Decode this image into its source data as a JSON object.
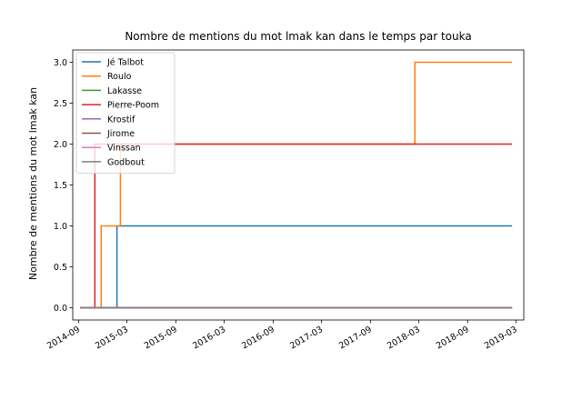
{
  "chart_data": {
    "type": "line",
    "step": true,
    "title": "Nombre de mentions du mot lmak kan dans le temps par touka",
    "xlabel": "",
    "ylabel": "Nombre de mentions du mot lmak kan",
    "xlim": [
      "2014-08-10",
      "2019-03-31"
    ],
    "ylim": [
      -0.15,
      3.15
    ],
    "x_ticks": [
      {
        "label": "2014-09",
        "date": "2014-09-01"
      },
      {
        "label": "2015-03",
        "date": "2015-03-01"
      },
      {
        "label": "2015-09",
        "date": "2015-09-01"
      },
      {
        "label": "2016-03",
        "date": "2016-03-01"
      },
      {
        "label": "2016-09",
        "date": "2016-09-01"
      },
      {
        "label": "2017-03",
        "date": "2017-03-01"
      },
      {
        "label": "2017-09",
        "date": "2017-09-01"
      },
      {
        "label": "2018-03",
        "date": "2018-03-01"
      },
      {
        "label": "2018-09",
        "date": "2018-09-01"
      },
      {
        "label": "2019-03",
        "date": "2019-03-01"
      }
    ],
    "y_ticks": [
      {
        "label": "0.0",
        "value": 0.0
      },
      {
        "label": "0.5",
        "value": 0.5
      },
      {
        "label": "1.0",
        "value": 1.0
      },
      {
        "label": "1.5",
        "value": 1.5
      },
      {
        "label": "2.0",
        "value": 2.0
      },
      {
        "label": "2.5",
        "value": 2.5
      },
      {
        "label": "3.0",
        "value": 3.0
      }
    ],
    "legend_position": "top-left",
    "series": [
      {
        "name": "Jé Talbot",
        "color": "#1f77b4",
        "points": [
          [
            "2014-09-07",
            0
          ],
          [
            "2015-01-23",
            0
          ],
          [
            "2015-01-23",
            1
          ],
          [
            "2019-02-15",
            1
          ]
        ]
      },
      {
        "name": "Roulo",
        "color": "#ff7f0e",
        "points": [
          [
            "2014-09-07",
            0
          ],
          [
            "2014-11-25",
            0
          ],
          [
            "2014-11-25",
            1
          ],
          [
            "2015-02-05",
            1
          ],
          [
            "2015-02-05",
            2
          ],
          [
            "2018-02-15",
            2
          ],
          [
            "2018-02-15",
            3
          ],
          [
            "2019-02-15",
            3
          ]
        ]
      },
      {
        "name": "Lakasse",
        "color": "#2ca02c",
        "points": [
          [
            "2014-09-07",
            0
          ],
          [
            "2019-02-15",
            0
          ]
        ]
      },
      {
        "name": "Pierre-Poom",
        "color": "#d62728",
        "points": [
          [
            "2014-09-07",
            0
          ],
          [
            "2014-11-01",
            0
          ],
          [
            "2014-11-01",
            2
          ],
          [
            "2019-02-15",
            2
          ]
        ]
      },
      {
        "name": "Krostif",
        "color": "#9467bd",
        "points": [
          [
            "2014-09-07",
            0
          ],
          [
            "2019-02-15",
            0
          ]
        ]
      },
      {
        "name": "Jirome",
        "color": "#8c564b",
        "points": [
          [
            "2014-09-07",
            0
          ],
          [
            "2019-02-15",
            0
          ]
        ]
      },
      {
        "name": "Vinssan",
        "color": "#e377c2",
        "points": [
          [
            "2014-09-07",
            0
          ],
          [
            "2019-02-15",
            0
          ]
        ]
      },
      {
        "name": "Godbout",
        "color": "#7f7f7f",
        "points": [
          [
            "2014-09-07",
            0
          ],
          [
            "2019-02-15",
            0
          ]
        ]
      }
    ]
  }
}
